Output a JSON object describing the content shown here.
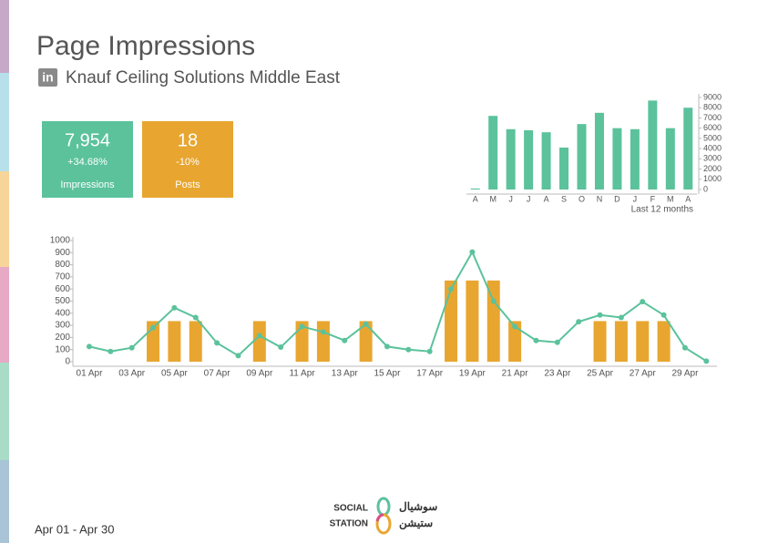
{
  "header": {
    "title": "Page Impressions",
    "icon_label": "in",
    "subtitle": "Knauf Ceiling Solutions Middle East"
  },
  "kpis": [
    {
      "value": "7,954",
      "change": "+34.68%",
      "label": "Impressions",
      "color": "#5bc29c"
    },
    {
      "value": "18",
      "change": "-10%",
      "label": "Posts",
      "color": "#e8a630"
    }
  ],
  "chart_data": [
    {
      "type": "bar",
      "categories": [
        "A",
        "M",
        "J",
        "J",
        "A",
        "S",
        "O",
        "N",
        "D",
        "J",
        "F",
        "M",
        "A"
      ],
      "values": [
        100,
        7200,
        5900,
        5800,
        5600,
        4100,
        6400,
        7500,
        6000,
        5900,
        8700,
        6000,
        8000
      ],
      "color": "#5bc29c",
      "xlabel": "Last 12 months",
      "ylim": [
        0,
        9000
      ],
      "yticks": [
        0,
        1000,
        2000,
        3000,
        4000,
        5000,
        6000,
        7000,
        8000,
        9000
      ],
      "y_axis_side": "right"
    },
    {
      "type": "combo",
      "categories": [
        "01 Apr",
        null,
        "03 Apr",
        null,
        "05 Apr",
        null,
        "07 Apr",
        null,
        "09 Apr",
        null,
        "11 Apr",
        null,
        "13 Apr",
        null,
        "15 Apr",
        null,
        "17 Apr",
        null,
        "19 Apr",
        null,
        "21 Apr",
        null,
        "23 Apr",
        null,
        "25 Apr",
        null,
        "27 Apr",
        null,
        "29 Apr",
        null
      ],
      "series": [
        {
          "type": "bar",
          "color": "#e8a630",
          "values": [
            0,
            0,
            0,
            335,
            335,
            335,
            0,
            0,
            335,
            0,
            335,
            335,
            0,
            335,
            0,
            0,
            0,
            670,
            670,
            670,
            335,
            0,
            0,
            0,
            335,
            335,
            335,
            335,
            0,
            0
          ]
        },
        {
          "type": "line",
          "color": "#5bc29c",
          "values": [
            125,
            85,
            115,
            280,
            445,
            365,
            155,
            50,
            215,
            120,
            290,
            245,
            175,
            310,
            125,
            100,
            85,
            600,
            905,
            500,
            290,
            175,
            160,
            330,
            385,
            365,
            495,
            385,
            115,
            5
          ]
        }
      ],
      "ylim": [
        0,
        1000
      ],
      "yticks": [
        0,
        100,
        200,
        300,
        400,
        500,
        600,
        700,
        800,
        900,
        1000
      ],
      "y_axis_side": "left"
    }
  ],
  "footer": {
    "date_range": "Apr 01 - Apr 30",
    "logo_en_1": "SOCIAL",
    "logo_en_2": "STATION",
    "logo_ar_1": "سوشيال",
    "logo_ar_2": "ستيشن"
  }
}
